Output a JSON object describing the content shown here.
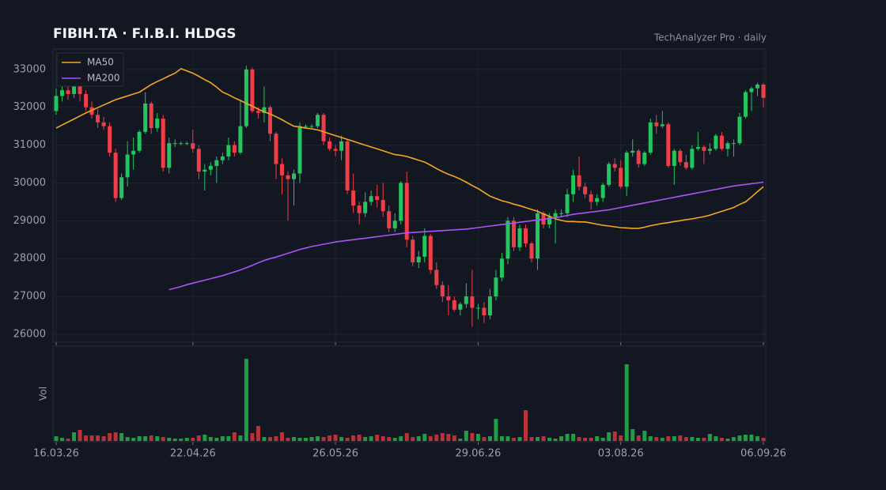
{
  "header": {
    "title": "FIBIH.TA  ·  F.I.B.I. HLDGS",
    "subtitle": "TechAnalyzer Pro · daily"
  },
  "chart_data": [
    {
      "type": "candlestick",
      "up_color": "#22c55e",
      "down_color": "#ef3e48",
      "ylim": [
        25790,
        33540
      ],
      "yticks": [
        26000,
        27000,
        28000,
        29000,
        30000,
        31000,
        32000,
        33000
      ],
      "grid": true,
      "legend": "top-left",
      "open": [
        31900,
        32300,
        32450,
        32350,
        32550,
        32350,
        32000,
        31800,
        31600,
        31500,
        30800,
        29600,
        30150,
        30750,
        30850,
        31350,
        32100,
        31450,
        31700,
        30400,
        31050,
        31050,
        31050,
        31050,
        30900,
        30300,
        30350,
        30450,
        30600,
        30700,
        31000,
        30800,
        31500,
        33000,
        31900,
        31850,
        32000,
        31300,
        30500,
        30200,
        30100,
        30250,
        31500,
        31500,
        31500,
        31800,
        31100,
        30900,
        30850,
        31100,
        29800,
        29400,
        29200,
        29500,
        29650,
        29550,
        29250,
        28800,
        29000,
        30000,
        28500,
        27900,
        28050,
        28600,
        27700,
        27300,
        27000,
        26900,
        26650,
        26800,
        27000,
        26700,
        26700,
        26500,
        27000,
        27500,
        28000,
        29000,
        28300,
        28800,
        28400,
        28000,
        29200,
        28900,
        29100,
        29200,
        29200,
        29700,
        30200,
        29900,
        29700,
        29500,
        29600,
        29950,
        30500,
        30400,
        29900,
        30800,
        30850,
        30500,
        30800,
        31600,
        31500,
        31550,
        30450,
        30850,
        30550,
        30400,
        30900,
        30950,
        30850,
        30900,
        31250,
        30900,
        31050,
        31050,
        31750,
        32400,
        32500,
        32600
      ],
      "high": [
        32500,
        32600,
        32550,
        32900,
        32700,
        32450,
        32150,
        31950,
        31750,
        31600,
        30900,
        30250,
        31100,
        31200,
        31400,
        32400,
        32150,
        31850,
        31800,
        31200,
        31150,
        31100,
        31100,
        31400,
        31000,
        30500,
        30550,
        30700,
        30800,
        31200,
        31100,
        32200,
        33100,
        33050,
        32000,
        32550,
        32050,
        31350,
        30650,
        30300,
        30350,
        31600,
        31550,
        31550,
        31850,
        31850,
        31200,
        31000,
        31250,
        31150,
        30250,
        29500,
        29750,
        29800,
        29950,
        30000,
        29400,
        29200,
        30050,
        30300,
        28600,
        28200,
        28800,
        28650,
        27900,
        27400,
        27300,
        27000,
        26850,
        27350,
        27700,
        26800,
        26850,
        27200,
        27700,
        28150,
        29100,
        29100,
        28900,
        28900,
        28450,
        29300,
        29250,
        29200,
        29300,
        29300,
        29850,
        30350,
        30700,
        30000,
        29800,
        29700,
        30000,
        30550,
        30650,
        30600,
        30850,
        31150,
        30900,
        30850,
        31700,
        31800,
        31900,
        31600,
        30900,
        30900,
        30750,
        31000,
        31350,
        31000,
        31050,
        31300,
        31350,
        31100,
        31150,
        31850,
        32450,
        32550,
        32650,
        32650
      ],
      "low": [
        31800,
        32150,
        32200,
        32250,
        32150,
        31900,
        31700,
        31450,
        31400,
        30700,
        29500,
        29550,
        29900,
        30350,
        30800,
        31300,
        31300,
        31350,
        30300,
        30250,
        30950,
        31000,
        31000,
        30800,
        30100,
        29800,
        30200,
        30000,
        30500,
        30600,
        30700,
        30750,
        31450,
        31850,
        31700,
        31600,
        31100,
        30100,
        29700,
        29000,
        29400,
        30000,
        31450,
        31450,
        31450,
        31000,
        30850,
        30700,
        30600,
        29700,
        29200,
        28900,
        29100,
        29400,
        29350,
        29100,
        28700,
        28700,
        28900,
        28300,
        27800,
        27750,
        27900,
        27600,
        27200,
        26850,
        26500,
        26600,
        26500,
        26700,
        26200,
        26400,
        26300,
        26400,
        26900,
        27400,
        27850,
        28200,
        28200,
        28300,
        27900,
        27700,
        28800,
        28800,
        28400,
        29100,
        29100,
        29500,
        29800,
        29600,
        29300,
        29400,
        29500,
        29900,
        30300,
        29850,
        29650,
        30700,
        30400,
        30450,
        30750,
        31300,
        31450,
        30400,
        29950,
        30450,
        30350,
        30350,
        30850,
        30500,
        30750,
        30850,
        30850,
        30700,
        30700,
        31000,
        31700,
        31900,
        32300,
        32000
      ],
      "close": [
        32300,
        32450,
        32350,
        32550,
        32350,
        32000,
        31800,
        31600,
        31500,
        30800,
        29600,
        30150,
        30750,
        30850,
        31350,
        32100,
        31450,
        31700,
        30400,
        31050,
        31050,
        31050,
        31050,
        30900,
        30300,
        30350,
        30450,
        30600,
        30700,
        31000,
        30800,
        31500,
        33000,
        31900,
        31850,
        32000,
        31300,
        30500,
        30200,
        30100,
        30250,
        31500,
        31500,
        31500,
        31800,
        31100,
        30900,
        30850,
        31100,
        29800,
        29400,
        29200,
        29500,
        29650,
        29550,
        29250,
        28800,
        29000,
        30000,
        28500,
        27900,
        28050,
        28600,
        27700,
        27300,
        27000,
        26900,
        26650,
        26800,
        27000,
        26700,
        26700,
        26500,
        27000,
        27500,
        28000,
        29000,
        28300,
        28800,
        28400,
        28000,
        29200,
        28900,
        29100,
        29200,
        29200,
        29700,
        30200,
        29900,
        29700,
        29500,
        29600,
        29950,
        30500,
        30400,
        29900,
        30800,
        30850,
        30500,
        30800,
        31600,
        31500,
        31550,
        30450,
        30850,
        30550,
        30400,
        30900,
        30950,
        30850,
        30900,
        31250,
        30900,
        31050,
        31050,
        31750,
        32400,
        32500,
        32600,
        32250
      ],
      "series": [
        {
          "name": "MA50",
          "color": "#f5a623",
          "values": [
            31450,
            31530,
            31610,
            31690,
            31770,
            31850,
            31920,
            31990,
            32060,
            32130,
            32200,
            32250,
            32300,
            32350,
            32400,
            32500,
            32600,
            32680,
            32750,
            32830,
            32900,
            33020,
            32960,
            32900,
            32820,
            32730,
            32650,
            32530,
            32400,
            32330,
            32250,
            32180,
            32100,
            32030,
            31950,
            31880,
            31820,
            31750,
            31670,
            31580,
            31500,
            31480,
            31450,
            31430,
            31400,
            31350,
            31300,
            31250,
            31200,
            31150,
            31100,
            31050,
            31000,
            30950,
            30900,
            30850,
            30800,
            30750,
            30730,
            30700,
            30650,
            30600,
            30550,
            30470,
            30380,
            30300,
            30230,
            30170,
            30100,
            30020,
            29930,
            29850,
            29750,
            29650,
            29590,
            29530,
            29490,
            29440,
            29400,
            29350,
            29300,
            29250,
            29180,
            29120,
            29050,
            29010,
            28980,
            28980,
            28970,
            28970,
            28940,
            28910,
            28880,
            28860,
            28840,
            28820,
            28810,
            28800,
            28800,
            28830,
            28870,
            28900,
            28930,
            28950,
            28980,
            29000,
            29030,
            29050,
            29080,
            29110,
            29150,
            29200,
            29250,
            29300,
            29350,
            29430,
            29500,
            29630,
            29770,
            29900
          ]
        },
        {
          "name": "MA200",
          "color": "#a855f7",
          "values": [
            null,
            null,
            null,
            null,
            null,
            null,
            null,
            null,
            null,
            null,
            null,
            null,
            null,
            null,
            null,
            null,
            null,
            null,
            null,
            27180,
            27220,
            27260,
            27310,
            27350,
            27390,
            27430,
            27470,
            27510,
            27550,
            27600,
            27650,
            27700,
            27760,
            27820,
            27890,
            27950,
            28000,
            28040,
            28090,
            28140,
            28190,
            28240,
            28280,
            28320,
            28350,
            28380,
            28410,
            28440,
            28460,
            28480,
            28500,
            28520,
            28540,
            28560,
            28580,
            28600,
            28620,
            28640,
            28660,
            28680,
            28690,
            28700,
            28710,
            28720,
            28730,
            28740,
            28750,
            28760,
            28770,
            28780,
            28800,
            28820,
            28840,
            28860,
            28880,
            28900,
            28920,
            28940,
            28960,
            28980,
            29000,
            29020,
            29040,
            29060,
            29080,
            29110,
            29140,
            29170,
            29190,
            29210,
            29230,
            29250,
            29270,
            29290,
            29320,
            29350,
            29380,
            29410,
            29440,
            29470,
            29500,
            29530,
            29560,
            29590,
            29620,
            29650,
            29680,
            29710,
            29740,
            29770,
            29800,
            29830,
            29860,
            29890,
            29920,
            29940,
            29960,
            29980,
            30000,
            30020
          ]
        }
      ]
    },
    {
      "type": "bar",
      "y_label": "Vol",
      "up_color": "#1f9d45",
      "down_color": "#b8323a",
      "ylim": [
        0,
        115
      ],
      "categories": [
        "16.03.26",
        null,
        null,
        null,
        null,
        null,
        null,
        null,
        null,
        null,
        null,
        null,
        null,
        null,
        null,
        null,
        null,
        null,
        null,
        null,
        null,
        null,
        null,
        "22.04.26",
        null,
        null,
        null,
        null,
        null,
        null,
        null,
        null,
        null,
        null,
        null,
        null,
        null,
        null,
        null,
        null,
        null,
        null,
        null,
        null,
        null,
        null,
        null,
        "26.05.26",
        null,
        null,
        null,
        null,
        null,
        null,
        null,
        null,
        null,
        null,
        null,
        null,
        null,
        null,
        null,
        null,
        null,
        null,
        null,
        null,
        null,
        null,
        null,
        "29.06.26",
        null,
        null,
        null,
        null,
        null,
        null,
        null,
        null,
        null,
        null,
        null,
        null,
        null,
        null,
        null,
        null,
        null,
        null,
        null,
        null,
        null,
        null,
        null,
        "03.08.26",
        null,
        null,
        null,
        null,
        null,
        null,
        null,
        null,
        null,
        null,
        null,
        null,
        null,
        null,
        null,
        null,
        null,
        null,
        null,
        null,
        null,
        null,
        null,
        "06.09.26"
      ],
      "values": [
        6,
        4,
        3,
        11,
        14,
        7,
        7,
        7,
        6,
        10,
        11,
        10,
        5,
        4,
        6,
        6,
        7,
        6,
        5,
        4,
        3,
        3,
        4,
        4,
        7,
        8,
        5,
        4,
        6,
        6,
        11,
        7,
        104,
        10,
        19,
        5,
        5,
        6,
        11,
        4,
        5,
        4,
        4,
        5,
        6,
        5,
        7,
        8,
        5,
        4,
        7,
        8,
        5,
        6,
        8,
        6,
        5,
        4,
        6,
        10,
        5,
        6,
        9,
        6,
        8,
        10,
        9,
        7,
        3,
        13,
        10,
        9,
        5,
        6,
        28,
        6,
        6,
        4,
        5,
        39,
        5,
        5,
        6,
        4,
        3,
        6,
        9,
        9,
        5,
        4,
        4,
        6,
        4,
        11,
        12,
        7,
        97,
        15,
        7,
        13,
        6,
        5,
        4,
        6,
        6,
        7,
        5,
        5,
        4,
        4,
        9,
        6,
        4,
        3,
        5,
        7,
        8,
        8,
        6,
        4
      ]
    }
  ]
}
